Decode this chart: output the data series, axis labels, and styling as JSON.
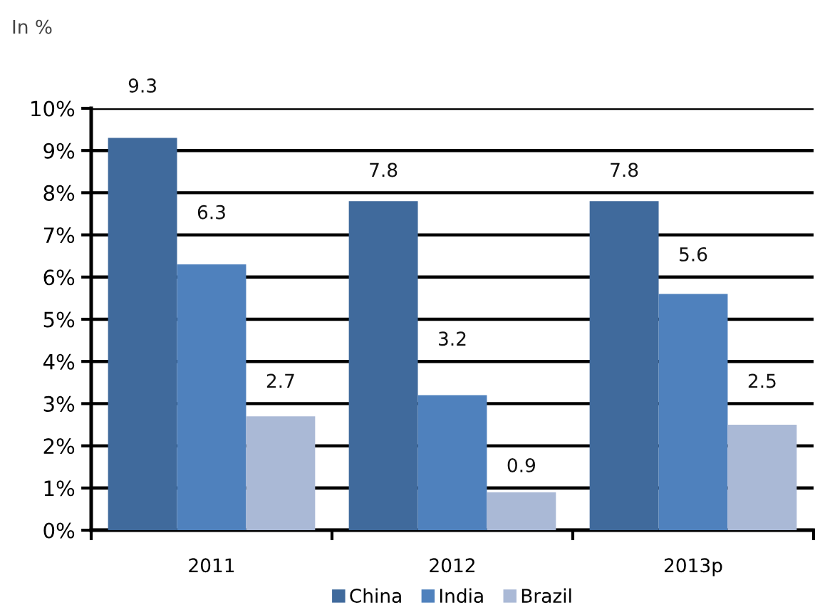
{
  "chart_data": {
    "type": "bar",
    "ylabel": "In %",
    "categories": [
      "2011",
      "2012",
      "2013p"
    ],
    "series": [
      {
        "name": "China",
        "color": "#406a9c",
        "values": [
          9.3,
          7.8,
          7.8
        ]
      },
      {
        "name": "India",
        "color": "#4f81bd",
        "values": [
          6.3,
          3.2,
          5.6
        ]
      },
      {
        "name": "Brazil",
        "color": "#aab9d6",
        "values": [
          2.7,
          0.9,
          2.5
        ]
      }
    ],
    "ylim": [
      0,
      10
    ],
    "yticks": [
      {
        "value": 0,
        "label": "0%"
      },
      {
        "value": 1,
        "label": "1%"
      },
      {
        "value": 2,
        "label": "2%"
      },
      {
        "value": 3,
        "label": "3%"
      },
      {
        "value": 4,
        "label": "4%"
      },
      {
        "value": 5,
        "label": "5%"
      },
      {
        "value": 6,
        "label": "6%"
      },
      {
        "value": 7,
        "label": "7%"
      },
      {
        "value": 8,
        "label": "8%"
      },
      {
        "value": 9,
        "label": "9%"
      },
      {
        "value": 10,
        "label": "10%"
      }
    ],
    "grid": "y",
    "legend": "bottom",
    "data_labels": true
  }
}
